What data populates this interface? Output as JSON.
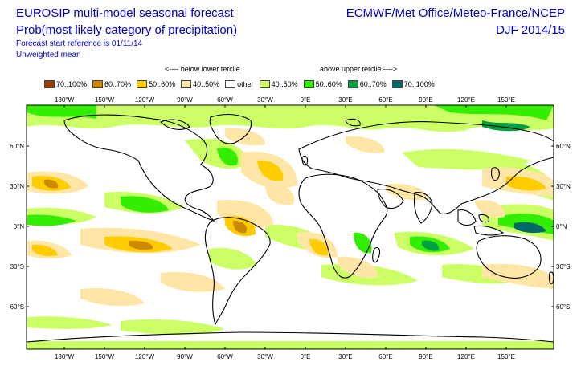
{
  "header": {
    "title_line1": "EUROSIP multi-model seasonal forecast",
    "title_line2": "Prob(most likely category of precipitation)",
    "start_ref": "Forecast start reference is 01/11/14",
    "mean_type": "Unweighted mean",
    "centres": "ECMWF/Met Office/Meteo-France/NCEP",
    "season": "DJF 2014/15"
  },
  "legend": {
    "below_label": "<---- below lower tercile",
    "above_label": "above upper tercile ---->",
    "items": [
      {
        "label": "70..100%",
        "color": "#9a3c00"
      },
      {
        "label": "60..70%",
        "color": "#cc8800"
      },
      {
        "label": "50..60%",
        "color": "#ffcc00"
      },
      {
        "label": "40..50%",
        "color": "#ffe6a6"
      },
      {
        "label": "other",
        "color": "#ffffff"
      },
      {
        "label": "40..50%",
        "color": "#ccff66"
      },
      {
        "label": "50..60%",
        "color": "#33ee00"
      },
      {
        "label": "60..70%",
        "color": "#00a040"
      },
      {
        "label": "70..100%",
        "color": "#006a6a"
      }
    ]
  },
  "map": {
    "lon_ticks": [
      "180°W",
      "150°W",
      "120°W",
      "90°W",
      "60°W",
      "30°W",
      "0°E",
      "30°E",
      "60°E",
      "90°E",
      "120°E",
      "150°E"
    ],
    "lat_ticks": [
      "60°N",
      "30°N",
      "0°N",
      "30°S",
      "60°S"
    ]
  }
}
